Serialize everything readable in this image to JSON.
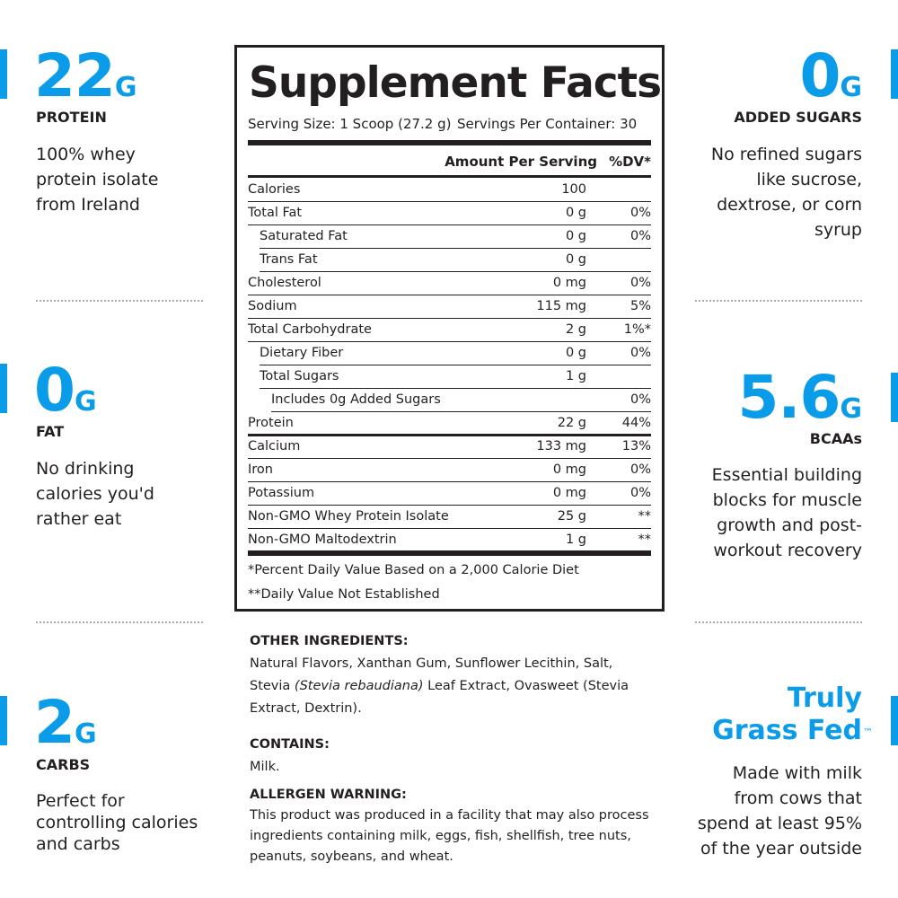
{
  "left_features": [
    {
      "value": "22",
      "unit": "G",
      "label": "PROTEIN",
      "lines": [
        "100% whey",
        "protein isolate",
        "from Ireland"
      ]
    },
    {
      "value": "0",
      "unit": "G",
      "label": "FAT",
      "lines": [
        "No drinking",
        "calories you'd",
        "rather eat"
      ]
    },
    {
      "value": "2",
      "unit": "G",
      "label": "CARBS",
      "lines": [
        "Perfect for",
        "controlling calories",
        "and carbs"
      ]
    }
  ],
  "right_features": [
    {
      "value": "0",
      "unit": "G",
      "label": "ADDED SUGARS",
      "lines": [
        "No refined sugars",
        "like sucrose,",
        "dextrose, or corn",
        "syrup"
      ]
    },
    {
      "value": "5.6",
      "unit": "G",
      "label": "BCAAs",
      "lines": [
        "Essential building",
        "blocks for muscle",
        "growth and post-",
        "workout recovery"
      ]
    },
    {
      "title_lines": [
        "Truly",
        "Grass Fed"
      ],
      "mark": "™",
      "lines": [
        "Made with milk",
        "from cows that",
        "spend at least 95%",
        "of the year outside"
      ]
    }
  ],
  "supplement_facts": {
    "title": "Supplement Facts",
    "serving_size": "Serving Size: 1 Scoop (27.2 g)",
    "servings_per_container": "Servings Per Container: 30",
    "header": [
      "Amount Per Serving",
      "%DV*"
    ],
    "rows": [
      {
        "name": "Calories",
        "amount": "100",
        "level": 0
      },
      {
        "name": "Total Fat",
        "amount": "0 g",
        "dv": "0%",
        "level": 0
      },
      {
        "name": "Saturated Fat",
        "amount": "0 g",
        "dv": "0%",
        "level": 1
      },
      {
        "name": "Trans Fat",
        "amount": "0 g",
        "level": 1
      },
      {
        "name": "Cholesterol",
        "amount": "0 mg",
        "dv": "0%",
        "level": 0
      },
      {
        "name": "Sodium",
        "amount": "115 mg",
        "dv": "5%",
        "level": 0
      },
      {
        "name": "Total Carbohydrate",
        "amount": "2 g",
        "dv": "1%*",
        "level": 0
      },
      {
        "name": "Dietary Fiber",
        "amount": "0 g",
        "dv": "0%",
        "level": 1
      },
      {
        "name": "Total Sugars",
        "amount": "1 g",
        "level": 1
      },
      {
        "name": "Includes 0g Added Sugars",
        "dv": "0%",
        "level": 2
      },
      {
        "name": "Protein",
        "amount": "22 g",
        "dv": "44%",
        "level": 0
      },
      {
        "name": "Calcium",
        "amount": "133 mg",
        "dv": "13%",
        "level": 0
      },
      {
        "name": "Iron",
        "amount": "0 mg",
        "dv": "0%",
        "level": 0
      },
      {
        "name": "Potassium",
        "amount": "0 mg",
        "dv": "0%",
        "level": 0
      },
      {
        "name": "Non-GMO Whey Protein Isolate",
        "amount": "25 g",
        "dv": "**",
        "level": 0
      },
      {
        "name": "Non-GMO Maltodextrin",
        "amount": "1 g",
        "dv": "**",
        "level": 0
      }
    ],
    "footnotes": [
      "*Percent Daily Value Based on a 2,000 Calorie Diet",
      "**Daily Value Not Established"
    ]
  },
  "other_ingredients": {
    "heading": "OTHER INGREDIENTS:",
    "text": [
      "Natural Flavors, Xanthan Gum, Sunflower Lecithin, Salt, Stevia ",
      "(Stevia rebaudiana)",
      " Leaf Extract, Ovasweet (Stevia Extract, Dextrin)."
    ]
  },
  "contains": {
    "heading": "CONTAINS:",
    "text": "Milk."
  },
  "allergen_warning": {
    "heading": "ALLERGEN WARNING:",
    "text": "This product was produced in a facility that may also process ingredients containing milk, eggs, fish, shellfish, tree nuts, peanuts, soybeans, and wheat."
  }
}
